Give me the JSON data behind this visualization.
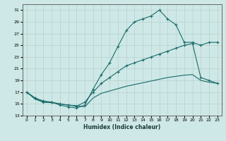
{
  "xlabel": "Humidex (Indice chaleur)",
  "bg_color": "#cde8e6",
  "grid_color": "#b8d0ce",
  "line_color": "#1a6b6b",
  "xlim": [
    -0.5,
    23.5
  ],
  "ylim": [
    13,
    32
  ],
  "yticks": [
    13,
    15,
    17,
    19,
    21,
    23,
    25,
    27,
    29,
    31
  ],
  "xticks": [
    0,
    1,
    2,
    3,
    4,
    5,
    6,
    7,
    8,
    9,
    10,
    11,
    12,
    13,
    14,
    15,
    16,
    17,
    18,
    19,
    20,
    21,
    22,
    23
  ],
  "curve1_x": [
    0,
    1,
    2,
    3,
    4,
    5,
    6,
    7,
    8,
    9,
    10,
    11,
    12,
    13,
    14,
    15,
    16,
    17,
    18,
    19,
    20,
    21,
    22,
    23
  ],
  "curve1_y": [
    17.0,
    16.0,
    15.3,
    15.3,
    14.8,
    14.5,
    14.3,
    14.8,
    17.5,
    20.0,
    22.0,
    24.8,
    27.5,
    29.0,
    29.5,
    30.0,
    31.0,
    29.5,
    28.5,
    25.5,
    25.5,
    25.0,
    25.5,
    25.5
  ],
  "curve2_x": [
    0,
    1,
    2,
    3,
    4,
    5,
    6,
    7,
    8,
    9,
    10,
    11,
    12,
    13,
    14,
    15,
    16,
    17,
    18,
    19,
    20,
    21,
    22,
    23
  ],
  "curve2_y": [
    17.0,
    16.0,
    15.5,
    15.3,
    15.0,
    14.8,
    14.6,
    15.3,
    17.0,
    18.5,
    19.5,
    20.5,
    21.5,
    22.0,
    22.5,
    23.0,
    23.5,
    24.0,
    24.5,
    25.0,
    25.3,
    19.5,
    19.0,
    18.5
  ],
  "curve3_x": [
    0,
    1,
    2,
    3,
    4,
    5,
    6,
    7,
    8,
    9,
    10,
    11,
    12,
    13,
    14,
    15,
    16,
    17,
    18,
    19,
    20,
    21,
    22,
    23
  ],
  "curve3_y": [
    17.0,
    15.8,
    15.3,
    15.2,
    15.0,
    14.8,
    14.7,
    14.5,
    16.0,
    16.8,
    17.2,
    17.6,
    18.0,
    18.3,
    18.6,
    18.9,
    19.2,
    19.5,
    19.7,
    19.9,
    20.0,
    19.0,
    18.7,
    18.5
  ]
}
